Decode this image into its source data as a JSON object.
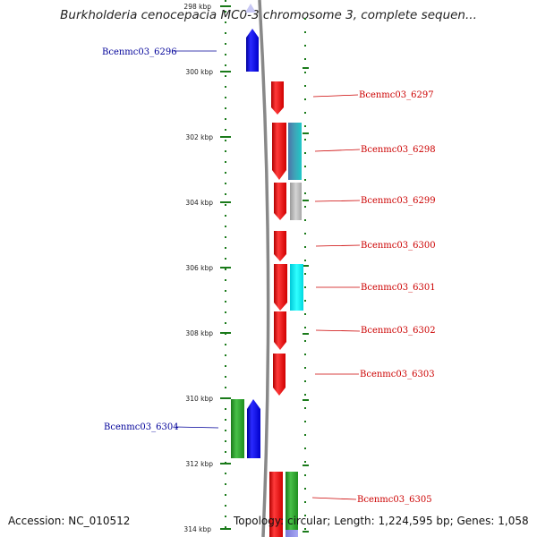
{
  "title": "Burkholderia cenocepacia MC0-3 chromosome 3, complete sequen...",
  "footer": {
    "accession": "Accession: NC_010512",
    "topology": "Topology: circular; Length: 1,224,595 bp; Genes: 1,058"
  },
  "axis": {
    "unit": "kbp",
    "ticks": [
      "298 kbp",
      "300 kbp",
      "302 kbp",
      "304 kbp",
      "306 kbp",
      "308 kbp",
      "310 kbp",
      "312 kbp",
      "314 kbp"
    ]
  },
  "colors": {
    "forward_gene": "#ff0000",
    "reverse_gene": "#0000ee",
    "label_forward": "#cc0000",
    "label_reverse": "#000099",
    "axis_tick": "#1a7a1a",
    "backbone": "#888888",
    "cog_teal": "#2a8fa0",
    "cog_cyan": "#00e5e5",
    "cog_gray": "#bbbbbb",
    "cog_green": "#2aa02a",
    "cog_lightblue": "#8888ee"
  },
  "genes": [
    {
      "name": "Bcenmc03_6296",
      "strand": "reverse"
    },
    {
      "name": "Bcenmc03_6297",
      "strand": "forward"
    },
    {
      "name": "Bcenmc03_6298",
      "strand": "forward"
    },
    {
      "name": "Bcenmc03_6299",
      "strand": "forward"
    },
    {
      "name": "Bcenmc03_6300",
      "strand": "forward"
    },
    {
      "name": "Bcenmc03_6301",
      "strand": "forward"
    },
    {
      "name": "Bcenmc03_6302",
      "strand": "forward"
    },
    {
      "name": "Bcenmc03_6303",
      "strand": "forward"
    },
    {
      "name": "Bcenmc03_6304",
      "strand": "reverse"
    },
    {
      "name": "Bcenmc03_6305",
      "strand": "forward"
    }
  ]
}
